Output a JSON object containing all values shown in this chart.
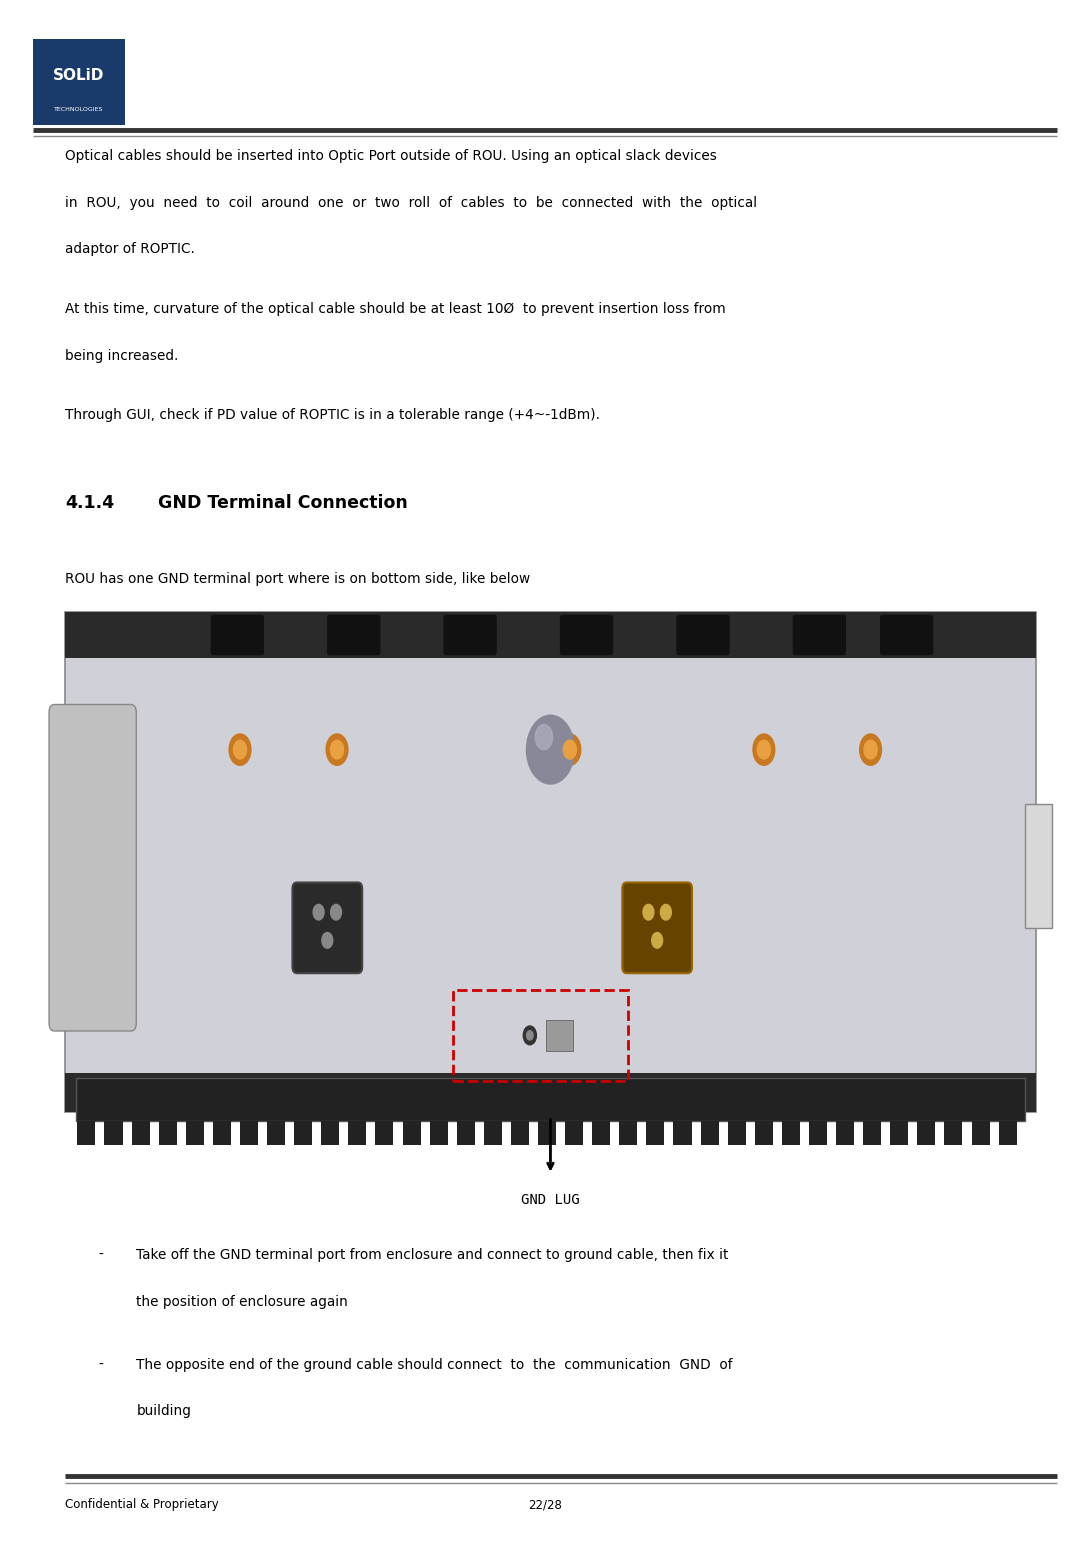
{
  "page_width": 10.9,
  "page_height": 15.64,
  "bg_color": "#ffffff",
  "header_line_color": "#000000",
  "footer_line_color": "#000000",
  "logo_box_color": "#1a3a6b",
  "logo_text": "SOLiD",
  "logo_sub": "TECHNOLOGIES",
  "footer_left": "Confidential & Proprietary",
  "footer_center": "22/28",
  "para1_line1": "Optical cables should be inserted into Optic Port outside of ROU. Using an optical slack devices",
  "para1_line2": "in  ROU,  you  need  to  coil  around  one  or  two  roll  of  cables  to  be  connected  with  the  optical",
  "para1_line3": "adaptor of ROPTIC.",
  "para2_line1": "At this time, curvature of the optical cable should be at least 10Ø  to prevent insertion loss from",
  "para2_line2": "being increased.",
  "para3": "Through GUI, check if PD value of ROPTIC is in a tolerable range (+4~-1dBm).",
  "section_num": "4.1.4",
  "section_title": "GND Terminal Connection",
  "sub_para": "ROU has one GND terminal port where is on bottom side, like below",
  "bullet1_line1": "Take off the GND terminal port from enclosure and connect to ground cable, then fix it",
  "bullet1_line2": "the position of enclosure again",
  "bullet2_line1": "The opposite end of the ground cable should connect  to  the  communication  GND  of",
  "bullet2_line2": "building",
  "gnd_label": "GND LUG"
}
